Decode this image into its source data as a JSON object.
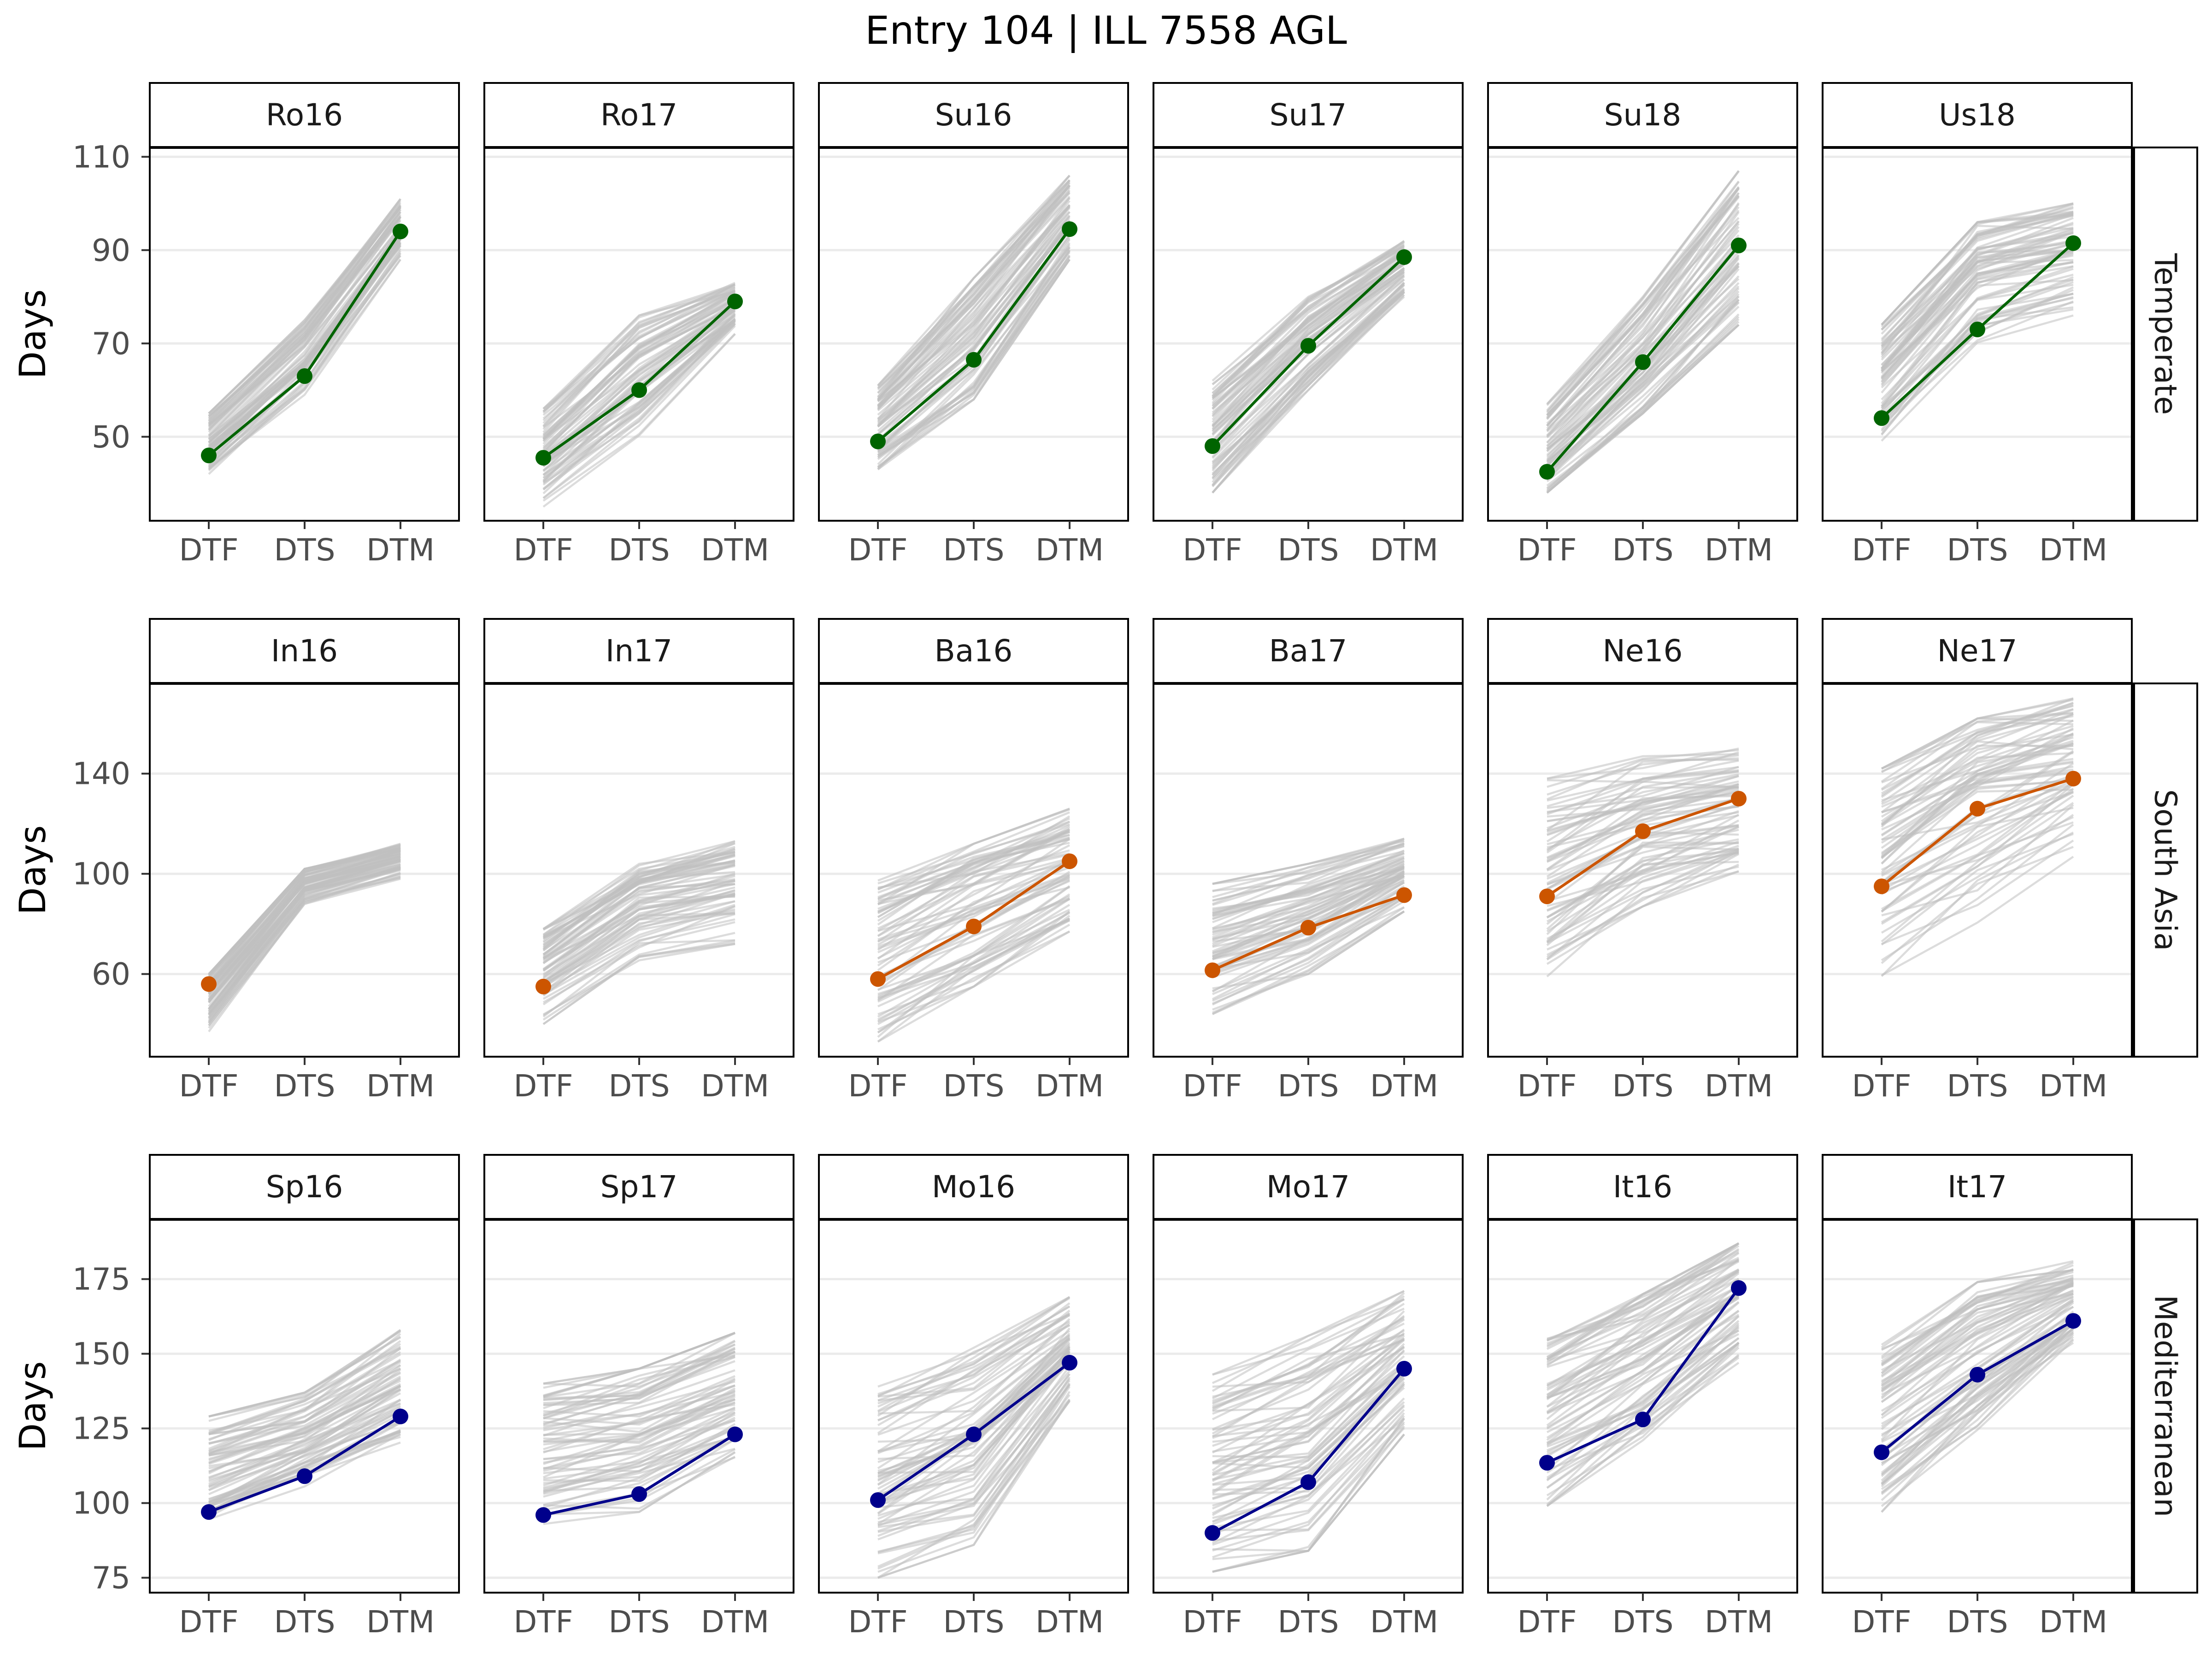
{
  "chart_data": {
    "type": "line",
    "title": "Entry 104 | ILL 7558 AGL",
    "ylabel": "Days",
    "categories": [
      "DTF",
      "DTS",
      "DTM"
    ],
    "background_color": "#BFBFBF",
    "grid": true,
    "rows": [
      {
        "label": "Temperate",
        "highlight_color": "#006400",
        "yticks": [
          50,
          70,
          90,
          110
        ],
        "ylim": [
          32,
          112
        ],
        "panels": [
          {
            "label": "Ro16",
            "highlight": [
              46,
              63,
              94
            ],
            "bg_low": [
              42,
              59,
              88
            ],
            "bg_high": [
              55,
              75,
              101
            ]
          },
          {
            "label": "Ro17",
            "highlight": [
              45.5,
              60,
              79
            ],
            "bg_low": [
              35,
              50,
              72
            ],
            "bg_high": [
              56,
              76,
              83
            ]
          },
          {
            "label": "Su16",
            "highlight": [
              49,
              66.5,
              94.5
            ],
            "bg_low": [
              43,
              58,
              88
            ],
            "bg_high": [
              61,
              84,
              106
            ]
          },
          {
            "label": "Su17",
            "highlight": [
              48,
              69.5,
              88.5
            ],
            "bg_low": [
              38,
              60,
              80
            ],
            "bg_high": [
              62,
              80,
              92
            ]
          },
          {
            "label": "Su18",
            "highlight": [
              42.5,
              66,
              91
            ],
            "bg_low": [
              38,
              55,
              74
            ],
            "bg_high": [
              57,
              80,
              107
            ]
          },
          {
            "label": "Us18",
            "highlight": [
              54,
              73,
              91.5
            ],
            "bg_low": [
              48,
              69,
              76
            ],
            "bg_high": [
              74,
              96,
              100
            ]
          }
        ]
      },
      {
        "label": "South Asia",
        "highlight_color": "#CC5500",
        "yticks": [
          60,
          100,
          140
        ],
        "ylim": [
          27,
          176
        ],
        "panels": [
          {
            "label": "In16",
            "highlight": [
              56,
              null,
              null
            ],
            "bg_low": [
              37,
              88,
              98
            ],
            "bg_high": [
              60,
              102,
              112
            ]
          },
          {
            "label": "In17",
            "highlight": [
              55,
              null,
              null
            ],
            "bg_low": [
              40,
              64,
              72
            ],
            "bg_high": [
              78,
              104,
              113
            ]
          },
          {
            "label": "Ba16",
            "highlight": [
              58,
              79,
              105
            ],
            "bg_low": [
              33,
              55,
              77
            ],
            "bg_high": [
              98,
              112,
              126
            ]
          },
          {
            "label": "Ba17",
            "highlight": [
              61.5,
              78.5,
              91.5
            ],
            "bg_low": [
              44,
              60,
              85
            ],
            "bg_high": [
              96,
              104,
              114
            ]
          },
          {
            "label": "Ne16",
            "highlight": [
              91,
              117,
              130
            ],
            "bg_low": [
              59,
              87,
              101
            ],
            "bg_high": [
              138,
              149,
              150
            ]
          },
          {
            "label": "Ne17",
            "highlight": [
              95,
              126,
              138
            ],
            "bg_low": [
              53,
              78,
              103
            ],
            "bg_high": [
              142,
              162,
              170
            ]
          }
        ]
      },
      {
        "label": "Mediterranean",
        "highlight_color": "#00008B",
        "yticks": [
          75,
          100,
          125,
          150,
          175
        ],
        "ylim": [
          70,
          195
        ],
        "panels": [
          {
            "label": "Sp16",
            "highlight": [
              97,
              109,
              129
            ],
            "bg_low": [
              92,
              105,
              118
            ],
            "bg_high": [
              129,
              137,
              158
            ]
          },
          {
            "label": "Sp17",
            "highlight": [
              96,
              103,
              123
            ],
            "bg_low": [
              93,
              97,
              113
            ],
            "bg_high": [
              140,
              145,
              157
            ]
          },
          {
            "label": "Mo16",
            "highlight": [
              101,
              123,
              147
            ],
            "bg_low": [
              75,
              86,
              134
            ],
            "bg_high": [
              139,
              152,
              169
            ]
          },
          {
            "label": "Mo17",
            "highlight": [
              90,
              107,
              145
            ],
            "bg_low": [
              77,
              84,
              123
            ],
            "bg_high": [
              143,
              156,
              171
            ]
          },
          {
            "label": "It16",
            "highlight": [
              113.5,
              128,
              172
            ],
            "bg_low": [
              99,
              121,
              147
            ],
            "bg_high": [
              155,
              170,
              187
            ]
          },
          {
            "label": "It17",
            "highlight": [
              117,
              143,
              161
            ],
            "bg_low": [
              97,
              124,
              153
            ],
            "bg_high": [
              153,
              174,
              181
            ]
          }
        ]
      }
    ]
  }
}
